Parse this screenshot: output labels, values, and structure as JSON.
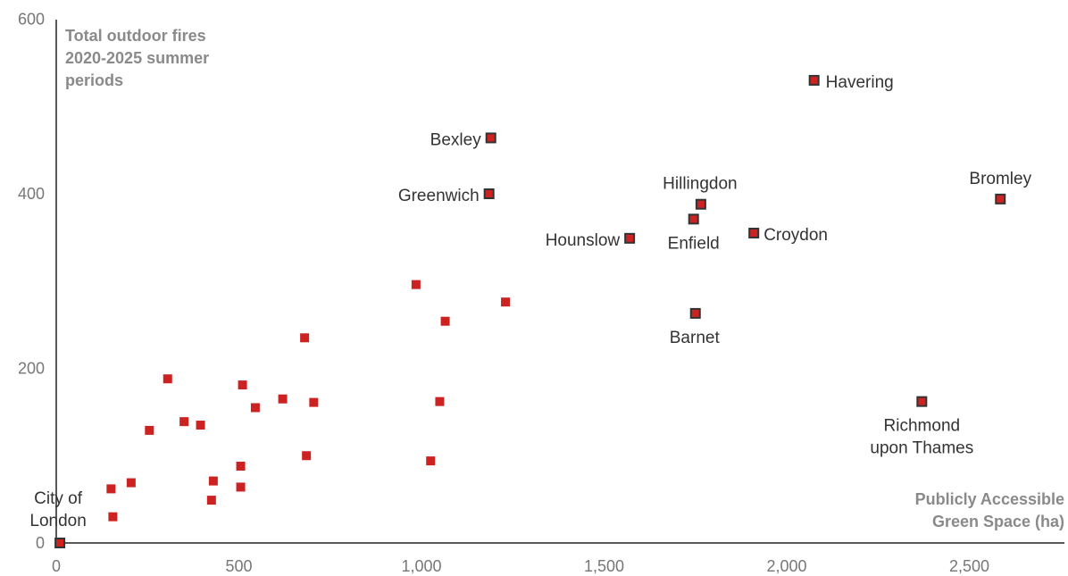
{
  "chart_data": {
    "type": "scatter",
    "title": "",
    "ylabel_lines": [
      "Total outdoor fires",
      "2020-2025 summer",
      "periods"
    ],
    "xlabel_lines": [
      "Publicly Accessible",
      "Green Space (ha)"
    ],
    "xlim": [
      0,
      2760
    ],
    "ylim": [
      0,
      600
    ],
    "x_ticks": [
      0,
      500,
      1000,
      1500,
      2000,
      2500
    ],
    "x_tick_labels": [
      "0",
      "500",
      "1,000",
      "1,500",
      "2,000",
      "2,500"
    ],
    "y_ticks": [
      0,
      200,
      400,
      600
    ],
    "y_tick_labels": [
      "0",
      "200",
      "400",
      "600"
    ],
    "grid": false,
    "marker_color": "#cc2222",
    "highlight_stroke": "#333333",
    "points": [
      {
        "x": 10,
        "y": 0,
        "label": "City of\nLondon",
        "highlight": true
      },
      {
        "x": 1190,
        "y": 464,
        "label": "Bexley",
        "highlight": true
      },
      {
        "x": 1185,
        "y": 400,
        "label": "Greenwich",
        "highlight": true
      },
      {
        "x": 2075,
        "y": 530,
        "label": "Havering",
        "highlight": true
      },
      {
        "x": 1765,
        "y": 388,
        "label": "Hillingdon",
        "highlight": true
      },
      {
        "x": 1745,
        "y": 371,
        "label": "Enfield",
        "highlight": true
      },
      {
        "x": 1570,
        "y": 349,
        "label": "Hounslow",
        "highlight": true
      },
      {
        "x": 1910,
        "y": 355,
        "label": "Croydon",
        "highlight": true
      },
      {
        "x": 2585,
        "y": 394,
        "label": "Bromley",
        "highlight": true
      },
      {
        "x": 1750,
        "y": 263,
        "label": "Barnet",
        "highlight": true
      },
      {
        "x": 2370,
        "y": 162,
        "label": "Richmond\nupon Thames",
        "highlight": true
      },
      {
        "x": 985,
        "y": 296
      },
      {
        "x": 1230,
        "y": 276
      },
      {
        "x": 1065,
        "y": 254
      },
      {
        "x": 680,
        "y": 235
      },
      {
        "x": 305,
        "y": 188
      },
      {
        "x": 510,
        "y": 181
      },
      {
        "x": 620,
        "y": 165
      },
      {
        "x": 705,
        "y": 161
      },
      {
        "x": 1050,
        "y": 162
      },
      {
        "x": 545,
        "y": 155
      },
      {
        "x": 350,
        "y": 139
      },
      {
        "x": 395,
        "y": 135
      },
      {
        "x": 255,
        "y": 129
      },
      {
        "x": 685,
        "y": 100
      },
      {
        "x": 1025,
        "y": 94
      },
      {
        "x": 505,
        "y": 88
      },
      {
        "x": 205,
        "y": 69
      },
      {
        "x": 430,
        "y": 71
      },
      {
        "x": 150,
        "y": 62
      },
      {
        "x": 505,
        "y": 64
      },
      {
        "x": 425,
        "y": 49
      },
      {
        "x": 155,
        "y": 30
      }
    ]
  }
}
